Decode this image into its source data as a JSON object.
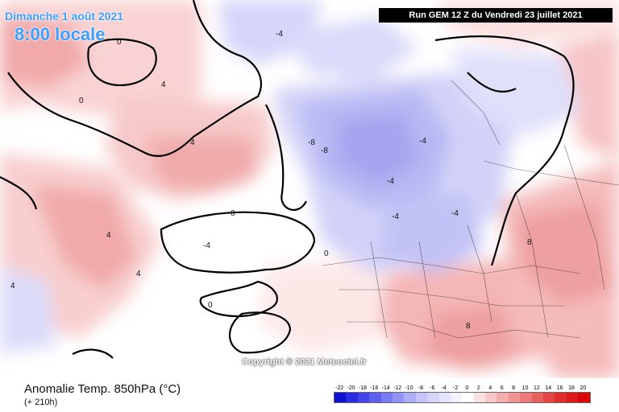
{
  "header": {
    "date": "Dimanche 1 août 2021",
    "time": "8:00 locale",
    "run": "Run GEM 12 Z du Vendredi 23 juillet 2021"
  },
  "footer": {
    "product": "Anomalie Temp. 850hPa (°C)",
    "lead": "(+ 210h)",
    "copyright": "Copyright © 2021 Meteociel.fr"
  },
  "legend": {
    "values": [
      "-22",
      "-20",
      "-18",
      "-16",
      "-14",
      "-12",
      "-10",
      "-8",
      "-6",
      "-4",
      "-2",
      "0",
      "2",
      "4",
      "6",
      "8",
      "10",
      "12",
      "14",
      "16",
      "18",
      "20"
    ],
    "colors": [
      "#1010d0",
      "#2a2ae0",
      "#4444e8",
      "#5e5ef0",
      "#7a7af2",
      "#9494f4",
      "#aeaef6",
      "#c4c4f8",
      "#d6d6fa",
      "#e4e4fc",
      "#f2f2fe",
      "#ffffff",
      "#fbe2e2",
      "#f8c8c8",
      "#f4aeae",
      "#f09494",
      "#ec7a7a",
      "#e86060",
      "#e44646",
      "#e02c2c",
      "#dc1818",
      "#d80808"
    ]
  },
  "map_labels": [
    {
      "text": "0"
    },
    {
      "text": "0"
    },
    {
      "text": "0"
    },
    {
      "text": "0"
    },
    {
      "text": "0"
    },
    {
      "text": "4"
    },
    {
      "text": "4"
    },
    {
      "text": "4"
    },
    {
      "text": "4"
    },
    {
      "text": "4"
    },
    {
      "text": "-4"
    },
    {
      "text": "-4"
    },
    {
      "text": "-4"
    },
    {
      "text": "-4"
    },
    {
      "text": "-4"
    },
    {
      "text": "-4"
    },
    {
      "text": "-8"
    },
    {
      "text": "-8"
    },
    {
      "text": "8"
    },
    {
      "text": "8"
    }
  ]
}
